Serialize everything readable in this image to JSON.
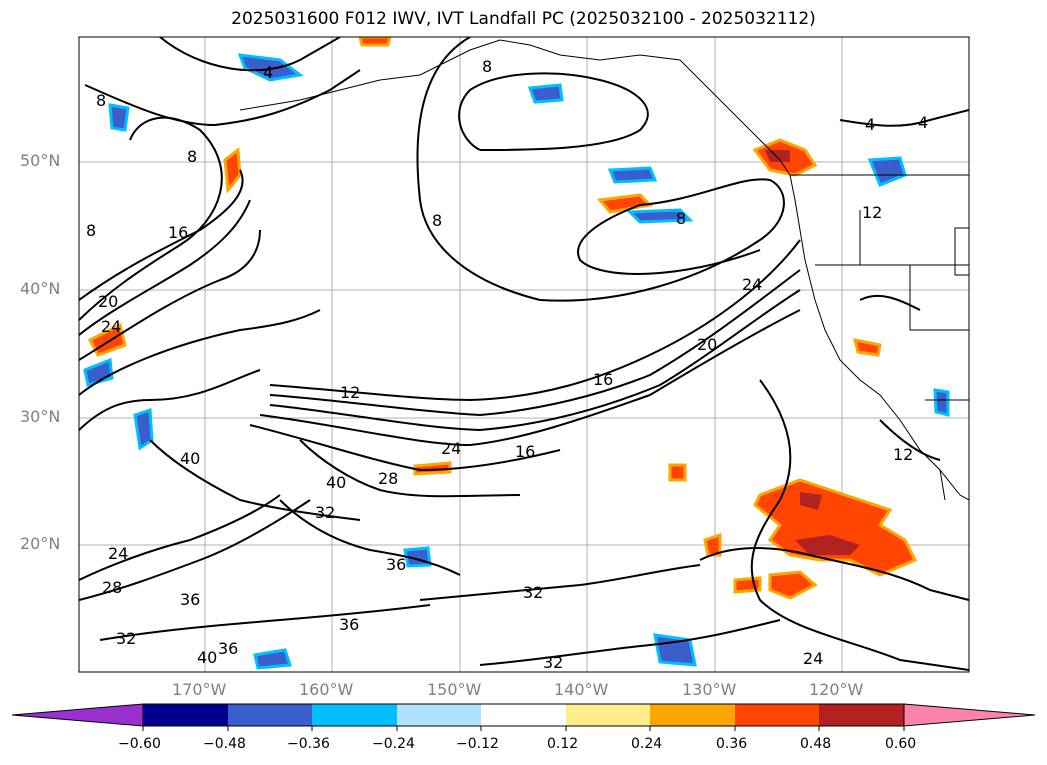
{
  "title": "2025031600 F012 IWV, IVT Landfall PC (2025032100 - 2025032112)",
  "map": {
    "lat_labels": [
      "50°N",
      "40°N",
      "30°N",
      "20°N"
    ],
    "lon_labels": [
      "170°W",
      "160°W",
      "150°W",
      "140°W",
      "130°W",
      "120°W"
    ],
    "contour_labels": [
      "4",
      "4",
      "4",
      "8",
      "8",
      "8",
      "8",
      "8",
      "8",
      "12",
      "12",
      "12",
      "16",
      "16",
      "16",
      "20",
      "20",
      "24",
      "24",
      "24",
      "24",
      "24",
      "28",
      "28",
      "32",
      "32",
      "32",
      "32",
      "36",
      "36",
      "36",
      "36",
      "40",
      "40",
      "40"
    ]
  },
  "colorbar": {
    "tick_labels": [
      "−0.60",
      "−0.48",
      "−0.36",
      "−0.24",
      "−0.12",
      "0.12",
      "0.24",
      "0.36",
      "0.48",
      "0.60"
    ],
    "colors": [
      "#9b30d0",
      "#00008b",
      "#3a5fcd",
      "#00bfff",
      "#b0e2ff",
      "#ffffff",
      "#ffec8b",
      "#ffa500",
      "#ff4500",
      "#b22222",
      "#ff82ab"
    ]
  }
}
